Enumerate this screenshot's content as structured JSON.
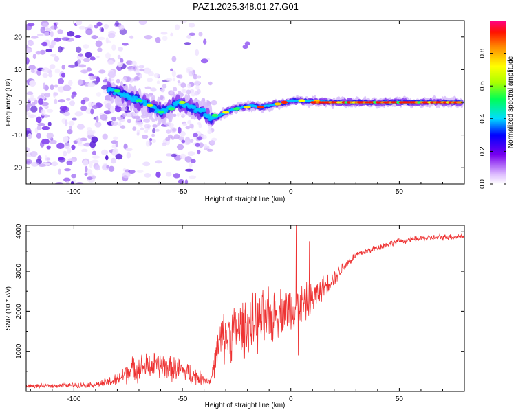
{
  "title": "PAZ1.2025.348.01.27.G01",
  "chart_data": [
    {
      "type": "heatmap",
      "name": "spectrogram",
      "xlabel": "Height of straight line (km)",
      "ylabel": "Frequency (Hz)",
      "xlim": [
        -122,
        80
      ],
      "ylim": [
        -25,
        25
      ],
      "xticks": [
        -100,
        -50,
        0,
        50
      ],
      "yticks": [
        -20,
        -10,
        0,
        10,
        20
      ],
      "ridge": {
        "x": [
          -84,
          -80,
          -76,
          -72,
          -68,
          -64,
          -60,
          -56,
          -52,
          -48,
          -44,
          -40,
          -37,
          -34,
          -30,
          -26,
          -22,
          -18,
          -14,
          -10,
          -6,
          -2,
          0,
          5,
          10,
          20,
          40,
          60,
          80
        ],
        "freq": [
          4,
          3,
          2,
          1,
          0,
          -1.5,
          -3,
          -2,
          0,
          -1,
          -2,
          -3,
          -5,
          -4.5,
          -3,
          -2,
          -1.5,
          -1,
          -1.5,
          -1,
          -0.5,
          0,
          0.5,
          0.5,
          0.3,
          0,
          0,
          0,
          0
        ]
      },
      "colorbar": {
        "label": "Normalized spectral amplitude",
        "range": [
          0,
          1
        ],
        "ticks": [
          0.0,
          0.2,
          0.4,
          0.6,
          0.8
        ]
      }
    },
    {
      "type": "line",
      "name": "snr",
      "xlabel": "Height of straight line (km)",
      "ylabel": "SNR (10 * v/v)",
      "xlim": [
        -122,
        80
      ],
      "ylim": [
        0,
        4150
      ],
      "xticks": [
        -100,
        -50,
        0,
        50
      ],
      "yticks": [
        1000,
        2000,
        3000,
        4000
      ],
      "color": "#ee3333",
      "envelope": {
        "x": [
          -122,
          -90,
          -80,
          -75,
          -70,
          -60,
          -50,
          -45,
          -40,
          -37,
          -33,
          -30,
          -20,
          -10,
          -5,
          0,
          5,
          10,
          15,
          20,
          25,
          30,
          40,
          50,
          60,
          70,
          80
        ],
        "mean": [
          130,
          170,
          280,
          500,
          600,
          650,
          500,
          400,
          300,
          260,
          1200,
          1400,
          1650,
          1800,
          2000,
          2100,
          2200,
          2300,
          2600,
          2850,
          3150,
          3400,
          3600,
          3750,
          3820,
          3850,
          3880
        ],
        "spread": [
          60,
          80,
          200,
          350,
          400,
          400,
          380,
          300,
          160,
          140,
          700,
          800,
          900,
          900,
          700,
          700,
          600,
          500,
          350,
          250,
          150,
          120,
          100,
          90,
          90,
          90,
          90
        ]
      },
      "spikes": [
        {
          "x": 2.5,
          "y": 4150
        },
        {
          "x": 3.5,
          "y": 900
        },
        {
          "x": 8.5,
          "y": 3750
        }
      ]
    }
  ]
}
